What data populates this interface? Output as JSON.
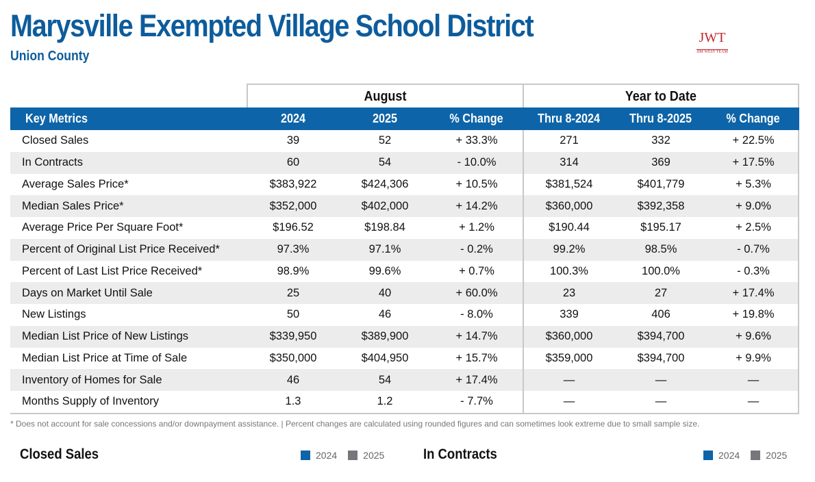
{
  "header": {
    "title": "Marysville Exempted Village School District",
    "subtitle": "Union County",
    "logo_text": "JWT",
    "logo_subtext": "JIM WEST TEAM"
  },
  "table": {
    "groups": [
      "August",
      "Year to Date"
    ],
    "columns": [
      "Key Metrics",
      "2024",
      "2025",
      "% Change",
      "Thru 8-2024",
      "Thru 8-2025",
      "% Change"
    ],
    "rows": [
      [
        "Closed Sales",
        "39",
        "52",
        "+ 33.3%",
        "271",
        "332",
        "+ 22.5%"
      ],
      [
        "In Contracts",
        "60",
        "54",
        "- 10.0%",
        "314",
        "369",
        "+ 17.5%"
      ],
      [
        "Average Sales Price*",
        "$383,922",
        "$424,306",
        "+ 10.5%",
        "$381,524",
        "$401,779",
        "+ 5.3%"
      ],
      [
        "Median Sales Price*",
        "$352,000",
        "$402,000",
        "+ 14.2%",
        "$360,000",
        "$392,358",
        "+ 9.0%"
      ],
      [
        "Average Price Per Square Foot*",
        "$196.52",
        "$198.84",
        "+ 1.2%",
        "$190.44",
        "$195.17",
        "+ 2.5%"
      ],
      [
        "Percent of Original List Price Received*",
        "97.3%",
        "97.1%",
        "- 0.2%",
        "99.2%",
        "98.5%",
        "- 0.7%"
      ],
      [
        "Percent of Last List Price Received*",
        "98.9%",
        "99.6%",
        "+ 0.7%",
        "100.3%",
        "100.0%",
        "- 0.3%"
      ],
      [
        "Days on Market Until Sale",
        "25",
        "40",
        "+ 60.0%",
        "23",
        "27",
        "+ 17.4%"
      ],
      [
        "New Listings",
        "50",
        "46",
        "- 8.0%",
        "339",
        "406",
        "+ 19.8%"
      ],
      [
        "Median List Price of New Listings",
        "$339,950",
        "$389,900",
        "+ 14.7%",
        "$360,000",
        "$394,700",
        "+ 9.6%"
      ],
      [
        "Median List Price at Time of Sale",
        "$350,000",
        "$404,950",
        "+ 15.7%",
        "$359,000",
        "$394,700",
        "+ 9.9%"
      ],
      [
        "Inventory of Homes for Sale",
        "46",
        "54",
        "+ 17.4%",
        "—",
        "—",
        "—"
      ],
      [
        "Months Supply of Inventory",
        "1.3",
        "1.2",
        "- 7.7%",
        "—",
        "—",
        "—"
      ]
    ]
  },
  "footnote": "* Does not account for sale concessions and/or downpayment assistance. | Percent changes are calculated using rounded figures and can sometimes look extreme due to small sample size.",
  "charts": [
    {
      "title": "Closed Sales",
      "legend": [
        "2024",
        "2025"
      ]
    },
    {
      "title": "In Contracts",
      "legend": [
        "2024",
        "2025"
      ]
    }
  ],
  "colors": {
    "brand": "#0d5c9c",
    "header_bg": "#0d64a8",
    "series_2024": "#0d64a8",
    "series_2025": "#77777b",
    "row_alt": "#ececec"
  }
}
